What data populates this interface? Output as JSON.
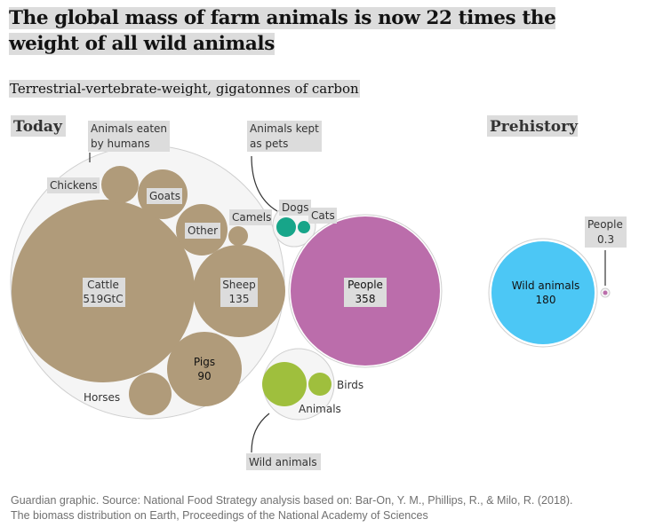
{
  "title": "The global mass of farm animals is now 22 times the weight of all wild animals",
  "subtitle": "Terrestrial-vertebrate-weight, gigatonnes of carbon",
  "footer_line1": "Guardian graphic. Source: National Food Strategy analysis based on: Bar-On, Y. M., Phillips, R., & Milo, R. (2018).",
  "footer_line2": "The biomass distribution on Earth, Proceedings of the National Academy of Sciences",
  "colors": {
    "farm": "#b09b7a",
    "people": "#bb6dab",
    "wild_animals_today": "#9fbf3d",
    "pets": "#17a589",
    "wild_animals_prehistory": "#4cc7f5",
    "people_prehistory": "#bb6dab",
    "group_fill": "#f5f5f5",
    "group_stroke": "#cfcfcf"
  },
  "chart_data": {
    "type": "bubble",
    "unit": "GtC",
    "sections": [
      {
        "label": "Today",
        "groups": [
          {
            "label": "Animals eaten by humans",
            "label_lines": [
              "Animals eaten",
              "by humans"
            ],
            "items": [
              {
                "name": "Cattle",
                "value_label": "519GtC"
              },
              {
                "name": "Sheep",
                "value_label": "135"
              },
              {
                "name": "Pigs",
                "value_label": "90"
              },
              {
                "name": "Chickens"
              },
              {
                "name": "Goats"
              },
              {
                "name": "Other"
              },
              {
                "name": "Camels"
              },
              {
                "name": "Horses"
              }
            ]
          },
          {
            "label": "Animals kept as pets",
            "label_lines": [
              "Animals kept",
              "as pets"
            ],
            "items": [
              {
                "name": "Dogs"
              },
              {
                "name": "Cats"
              }
            ]
          },
          {
            "label": "People",
            "items": [
              {
                "name": "People",
                "value_label": "358"
              }
            ]
          },
          {
            "label": "Wild animals",
            "items": [
              {
                "name": "Animals"
              },
              {
                "name": "Birds"
              }
            ]
          }
        ]
      },
      {
        "label": "Prehistory",
        "groups": [
          {
            "label": "Wild animals",
            "items": [
              {
                "name": "Wild animals",
                "value_label": "180"
              }
            ]
          },
          {
            "label": "People",
            "items": [
              {
                "name": "People",
                "value_label": "0.3"
              }
            ]
          }
        ]
      }
    ]
  }
}
